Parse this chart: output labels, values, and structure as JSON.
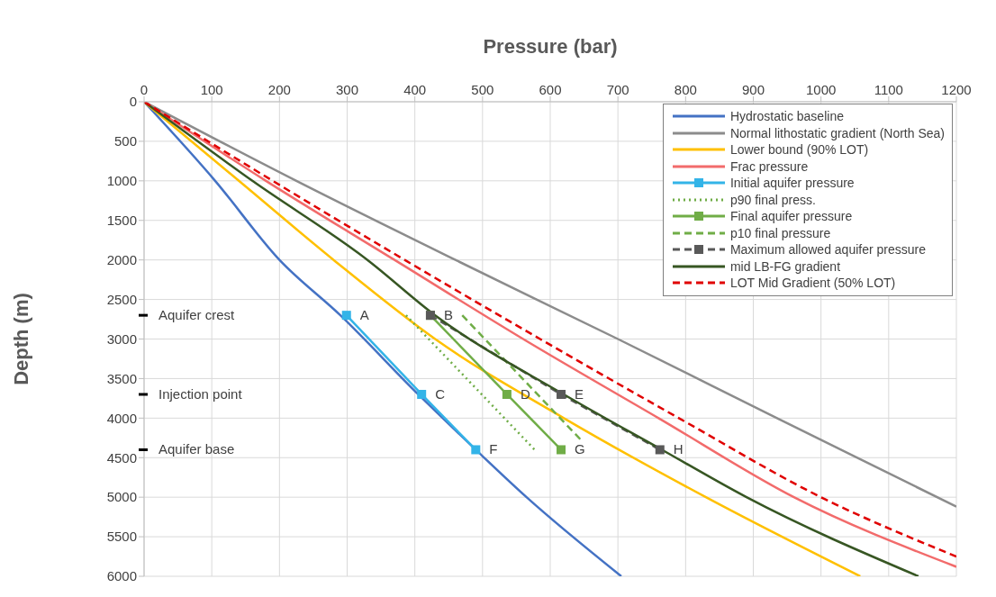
{
  "chart_data": {
    "type": "line",
    "xlabel": "Pressure (bar)",
    "ylabel": "Depth (m)",
    "xlim": [
      0,
      1200
    ],
    "xticks": [
      0,
      100,
      200,
      300,
      400,
      500,
      600,
      700,
      800,
      900,
      1000,
      1100,
      1200
    ],
    "ylim": [
      6000,
      0
    ],
    "yticks": [
      0,
      500,
      1000,
      1500,
      2000,
      2500,
      3000,
      3500,
      4000,
      4500,
      5000,
      5500,
      6000
    ],
    "grid": true,
    "legend": "top right",
    "series": [
      {
        "name": "Hydrostatic baseline",
        "color": "#4472c4",
        "line_style": "solid",
        "marker": "none",
        "x": [
          0,
          105,
          200,
          290,
          405,
          490,
          565,
          705
        ],
        "values": [
          0,
          1000,
          2000,
          2700,
          3700,
          4400,
          5000,
          6000
        ]
      },
      {
        "name": "Normal lithostatic gradient (North Sea)",
        "color": "#8c8c8c",
        "line_style": "solid",
        "marker": "none",
        "x": [
          0,
          225,
          460,
          700,
          935,
          1200
        ],
        "values": [
          0,
          1000,
          2000,
          3000,
          4000,
          5120
        ]
      },
      {
        "name": "Lower bound (90% LOT)",
        "color": "#ffc000",
        "line_style": "solid",
        "marker": "none",
        "x": [
          0,
          140,
          280,
          430,
          620,
          830,
          1058
        ],
        "values": [
          0,
          1000,
          2000,
          3000,
          4000,
          5000,
          6000
        ]
      },
      {
        "name": "Frac pressure",
        "color": "#f26b6b",
        "line_style": "solid",
        "marker": "none",
        "x": [
          0,
          180,
          370,
          560,
          760,
          960,
          1200
        ],
        "values": [
          0,
          1000,
          2000,
          3000,
          4000,
          5000,
          5880
        ]
      },
      {
        "name": "Initial aquifer pressure",
        "color": "#33b4e8",
        "line_style": "solid",
        "marker": "square",
        "x": [
          299,
          410,
          490
        ],
        "values": [
          2700,
          3700,
          4400
        ]
      },
      {
        "name": "p90 final press.",
        "color": "#70ad47",
        "line_style": "dotted",
        "marker": "none",
        "x": [
          387,
          577
        ],
        "values": [
          2700,
          4400
        ]
      },
      {
        "name": "Final aquifer pressure",
        "color": "#70ad47",
        "line_style": "solid",
        "marker": "square",
        "x": [
          423,
          536,
          616
        ],
        "values": [
          2700,
          3700,
          4400
        ]
      },
      {
        "name": "p10 final pressure",
        "color": "#70ad47",
        "line_style": "dashed",
        "marker": "none",
        "x": [
          470,
          648
        ],
        "values": [
          2700,
          4300
        ]
      },
      {
        "name": "Maximum allowed aquifer pressure",
        "color": "#595959",
        "line_style": "dashed",
        "marker": "square",
        "x": [
          423,
          616,
          762
        ],
        "values": [
          2700,
          3700,
          4400
        ]
      },
      {
        "name": "mid LB-FG gradient",
        "color": "#375623",
        "line_style": "solid",
        "marker": "none",
        "x": [
          0,
          160,
          330,
          430,
          620,
          765,
          890,
          1144
        ],
        "values": [
          0,
          1000,
          2000,
          2700,
          3700,
          4400,
          5000,
          6000
        ]
      },
      {
        "name": "LOT Mid Gradient (50% LOT)",
        "color": "#e00000",
        "line_style": "dashed",
        "marker": "none",
        "x": [
          0,
          190,
          385,
          585,
          790,
          1000,
          1200
        ],
        "values": [
          0,
          1000,
          2000,
          3000,
          4000,
          5000,
          5750
        ]
      }
    ],
    "annotations": [
      "Aquifer crest",
      "Injection point",
      "Aquifer base",
      {
        "text": "A",
        "x": 299,
        "y": 2700
      },
      {
        "text": "B",
        "x": 423,
        "y": 2700
      },
      {
        "text": "C",
        "x": 410,
        "y": 3700
      },
      {
        "text": "D",
        "x": 536,
        "y": 3700
      },
      {
        "text": "E",
        "x": 616,
        "y": 3700
      },
      {
        "text": "F",
        "x": 490,
        "y": 4400
      },
      {
        "text": "G",
        "x": 616,
        "y": 4400
      },
      {
        "text": "H",
        "x": 762,
        "y": 4400
      }
    ]
  }
}
